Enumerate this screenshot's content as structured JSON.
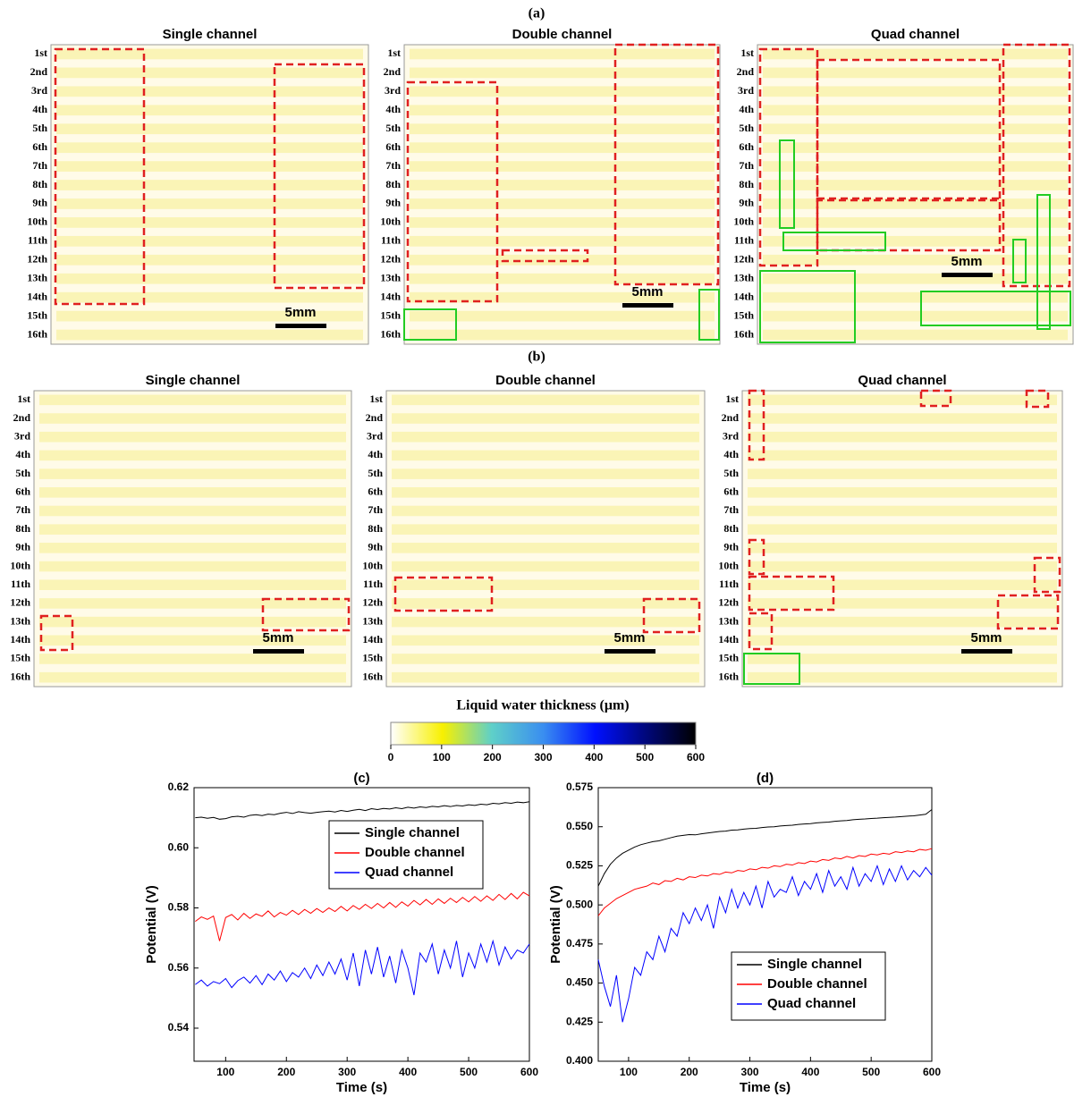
{
  "figure": {
    "panel_a": "(a)",
    "panel_b": "(b)",
    "image_titles": [
      "Single channel",
      "Double channel",
      "Quad channel"
    ],
    "channel_labels": [
      "1st",
      "2nd",
      "3rd",
      "4th",
      "5th",
      "6th",
      "7th",
      "8th",
      "9th",
      "10th",
      "11th",
      "12th",
      "13th",
      "14th",
      "15th",
      "16th"
    ],
    "scale_bar": "5mm"
  },
  "colorbar": {
    "title": "Liquid water thickness (μm)",
    "lim": [
      0,
      600
    ],
    "ticks": [
      0,
      100,
      200,
      300,
      400,
      500,
      600
    ]
  },
  "chart_data": [
    {
      "type": "line",
      "title": "(c)",
      "x_label": "Time (s)",
      "y_label": "Potential (V)",
      "x": [
        50,
        60,
        70,
        80,
        90,
        100,
        110,
        120,
        130,
        140,
        150,
        160,
        170,
        180,
        190,
        200,
        210,
        220,
        230,
        240,
        250,
        260,
        270,
        280,
        290,
        300,
        310,
        320,
        330,
        340,
        350,
        360,
        370,
        380,
        390,
        400,
        410,
        420,
        430,
        440,
        450,
        460,
        470,
        480,
        490,
        500,
        510,
        520,
        530,
        540,
        550,
        560,
        570,
        580,
        590,
        600
      ],
      "series": [
        {
          "name": "Single channel",
          "color": "#000000",
          "values": [
            0.61,
            0.6102,
            0.6098,
            0.6101,
            0.6095,
            0.6097,
            0.6103,
            0.6105,
            0.6102,
            0.6108,
            0.611,
            0.6107,
            0.6112,
            0.611,
            0.6115,
            0.6118,
            0.6114,
            0.612,
            0.6117,
            0.6115,
            0.6118,
            0.612,
            0.6122,
            0.6119,
            0.6124,
            0.6121,
            0.6125,
            0.6128,
            0.6124,
            0.613,
            0.6127,
            0.6131,
            0.6129,
            0.6133,
            0.613,
            0.6135,
            0.6132,
            0.6136,
            0.6134,
            0.6138,
            0.6136,
            0.614,
            0.6137,
            0.6141,
            0.6139,
            0.6143,
            0.6141,
            0.6145,
            0.6143,
            0.6148,
            0.6146,
            0.615,
            0.6148,
            0.6152,
            0.615,
            0.6153
          ]
        },
        {
          "name": "Double channel",
          "color": "#ff0000",
          "values": [
            0.5755,
            0.577,
            0.5762,
            0.5773,
            0.569,
            0.5768,
            0.5778,
            0.576,
            0.5782,
            0.5765,
            0.578,
            0.5772,
            0.579,
            0.577,
            0.5785,
            0.5776,
            0.5792,
            0.5778,
            0.5795,
            0.5782,
            0.5798,
            0.5785,
            0.58,
            0.5788,
            0.5805,
            0.579,
            0.5808,
            0.5795,
            0.5812,
            0.5798,
            0.5815,
            0.58,
            0.5818,
            0.5802,
            0.582,
            0.5806,
            0.5825,
            0.581,
            0.5828,
            0.5812,
            0.583,
            0.5815,
            0.5832,
            0.5818,
            0.5835,
            0.582,
            0.5838,
            0.5822,
            0.584,
            0.5825,
            0.5845,
            0.5828,
            0.5848,
            0.583,
            0.5852,
            0.584
          ]
        },
        {
          "name": "Quad channel",
          "color": "#0000ff",
          "values": [
            0.5545,
            0.556,
            0.554,
            0.5555,
            0.5548,
            0.5565,
            0.5535,
            0.5558,
            0.557,
            0.555,
            0.5575,
            0.5545,
            0.558,
            0.556,
            0.559,
            0.5555,
            0.5585,
            0.557,
            0.56,
            0.5565,
            0.561,
            0.5575,
            0.562,
            0.558,
            0.563,
            0.556,
            0.565,
            0.554,
            0.566,
            0.558,
            0.567,
            0.557,
            0.564,
            0.555,
            0.566,
            0.56,
            0.551,
            0.565,
            0.562,
            0.568,
            0.558,
            0.566,
            0.56,
            0.569,
            0.557,
            0.565,
            0.56,
            0.568,
            0.562,
            0.569,
            0.561,
            0.567,
            0.563,
            0.566,
            0.565,
            0.568
          ]
        }
      ],
      "xlim": [
        48,
        600
      ],
      "ylim": [
        0.529,
        0.62
      ],
      "xticks": [
        100,
        200,
        300,
        400,
        500,
        600
      ],
      "yticks": [
        0.54,
        0.56,
        0.58,
        {
          "value": 0.6,
          "label": "0.60"
        },
        0.62
      ],
      "legend": "upper right"
    },
    {
      "type": "line",
      "title": "(d)",
      "x_label": "Time (s)",
      "y_label": "Potential (V)",
      "x": [
        50,
        60,
        70,
        80,
        90,
        100,
        110,
        120,
        130,
        140,
        150,
        160,
        170,
        180,
        190,
        200,
        210,
        220,
        230,
        240,
        250,
        260,
        270,
        280,
        290,
        300,
        310,
        320,
        330,
        340,
        350,
        360,
        370,
        380,
        390,
        400,
        410,
        420,
        430,
        440,
        450,
        460,
        470,
        480,
        490,
        500,
        510,
        520,
        530,
        540,
        550,
        560,
        570,
        580,
        590,
        600
      ],
      "series": [
        {
          "name": "Single channel",
          "color": "#000000",
          "values": [
            0.512,
            0.52,
            0.526,
            0.53,
            0.533,
            0.535,
            0.537,
            0.5385,
            0.5395,
            0.5405,
            0.541,
            0.542,
            0.543,
            0.544,
            0.5445,
            0.545,
            0.5448,
            0.5455,
            0.546,
            0.5465,
            0.547,
            0.5472,
            0.5478,
            0.548,
            0.5485,
            0.5488,
            0.549,
            0.5495,
            0.5498,
            0.55,
            0.5505,
            0.5508,
            0.551,
            0.5515,
            0.5518,
            0.552,
            0.5525,
            0.5528,
            0.553,
            0.5535,
            0.5538,
            0.554,
            0.5545,
            0.5548,
            0.555,
            0.5553,
            0.5555,
            0.5558,
            0.556,
            0.5562,
            0.5565,
            0.5568,
            0.557,
            0.5575,
            0.558,
            0.561
          ]
        },
        {
          "name": "Double channel",
          "color": "#ff0000",
          "values": [
            0.493,
            0.498,
            0.501,
            0.504,
            0.506,
            0.508,
            0.51,
            0.511,
            0.512,
            0.514,
            0.513,
            0.5155,
            0.515,
            0.517,
            0.516,
            0.518,
            0.5175,
            0.519,
            0.5185,
            0.52,
            0.5195,
            0.521,
            0.5205,
            0.522,
            0.5215,
            0.523,
            0.5225,
            0.524,
            0.5235,
            0.525,
            0.5245,
            0.526,
            0.5255,
            0.527,
            0.5265,
            0.528,
            0.5275,
            0.529,
            0.5285,
            0.53,
            0.5295,
            0.531,
            0.53,
            0.5315,
            0.531,
            0.5325,
            0.532,
            0.533,
            0.5325,
            0.534,
            0.5335,
            0.5345,
            0.534,
            0.5355,
            0.535,
            0.536
          ]
        },
        {
          "name": "Quad channel",
          "color": "#0000ff",
          "values": [
            0.465,
            0.448,
            0.435,
            0.455,
            0.425,
            0.44,
            0.46,
            0.455,
            0.47,
            0.465,
            0.48,
            0.47,
            0.485,
            0.48,
            0.495,
            0.488,
            0.498,
            0.49,
            0.5,
            0.485,
            0.505,
            0.495,
            0.51,
            0.498,
            0.508,
            0.5,
            0.512,
            0.498,
            0.515,
            0.505,
            0.51,
            0.508,
            0.518,
            0.506,
            0.515,
            0.51,
            0.52,
            0.508,
            0.522,
            0.512,
            0.518,
            0.51,
            0.524,
            0.512,
            0.52,
            0.515,
            0.525,
            0.513,
            0.523,
            0.515,
            0.525,
            0.516,
            0.522,
            0.518,
            0.524,
            0.519
          ]
        }
      ],
      "xlim": [
        50,
        600
      ],
      "ylim": [
        0.4,
        0.575
      ],
      "xticks": [
        100,
        200,
        300,
        400,
        500,
        600
      ],
      "yticks": [
        {
          "value": 0.4,
          "label": "0.400"
        },
        0.425,
        {
          "value": 0.45,
          "label": "0.450"
        },
        0.475,
        {
          "value": 0.5,
          "label": "0.500"
        },
        0.525,
        {
          "value": 0.55,
          "label": "0.550"
        },
        0.575
      ],
      "legend": "lower right"
    }
  ]
}
